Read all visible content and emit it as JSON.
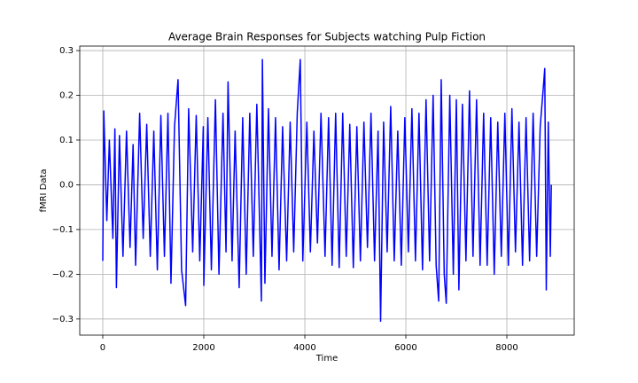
{
  "chart_data": {
    "type": "line",
    "title": "Average Brain Responses for Subjects watching Pulp Fiction",
    "x_label": "Time",
    "y_label": "fMRI Data",
    "grid": true,
    "xlim": [
      -456,
      9333
    ],
    "ylim": [
      -0.336,
      0.31
    ],
    "xticks": [
      0,
      2000,
      4000,
      6000,
      8000
    ],
    "yticks": [
      {
        "value": -0.3,
        "label": "−0.3"
      },
      {
        "value": -0.2,
        "label": "−0.2"
      },
      {
        "value": -0.1,
        "label": "−0.1"
      },
      {
        "value": 0,
        "label": "0.0"
      },
      0.1,
      0.2,
      0.3
    ],
    "x": [
      0,
      20,
      80,
      130,
      200,
      240,
      270,
      330,
      400,
      470,
      540,
      600,
      650,
      730,
      800,
      870,
      940,
      1010,
      1080,
      1150,
      1220,
      1290,
      1350,
      1420,
      1490,
      1560,
      1640,
      1700,
      1780,
      1850,
      1920,
      1990,
      2000,
      2080,
      2150,
      2230,
      2300,
      2380,
      2440,
      2480,
      2560,
      2620,
      2700,
      2770,
      2840,
      2910,
      2980,
      3050,
      3140,
      3160,
      3210,
      3280,
      3350,
      3420,
      3490,
      3560,
      3640,
      3710,
      3780,
      3850,
      3910,
      3960,
      4040,
      4110,
      4180,
      4250,
      4320,
      4400,
      4470,
      4540,
      4610,
      4680,
      4750,
      4820,
      4890,
      4960,
      5030,
      5100,
      5170,
      5240,
      5310,
      5380,
      5450,
      5500,
      5560,
      5630,
      5700,
      5770,
      5840,
      5910,
      5980,
      6050,
      6120,
      6190,
      6260,
      6330,
      6400,
      6470,
      6540,
      6600,
      6650,
      6700,
      6760,
      6800,
      6870,
      6940,
      7000,
      7050,
      7120,
      7190,
      7260,
      7330,
      7400,
      7470,
      7540,
      7610,
      7680,
      7750,
      7820,
      7890,
      7960,
      8030,
      8100,
      8170,
      8240,
      8310,
      8380,
      8450,
      8520,
      8590,
      8660,
      8720,
      8750,
      8780,
      8820,
      8860,
      8880
    ],
    "series": [
      {
        "color": "#0000ff",
        "values": [
          -0.17,
          0.165,
          -0.08,
          0.1,
          -0.12,
          0.125,
          -0.23,
          0.11,
          -0.16,
          0.12,
          -0.14,
          0.09,
          -0.18,
          0.16,
          -0.12,
          0.135,
          -0.16,
          0.12,
          -0.19,
          0.155,
          -0.16,
          0.16,
          -0.22,
          0.13,
          0.235,
          -0.19,
          -0.27,
          0.17,
          -0.15,
          0.155,
          -0.17,
          0.13,
          -0.225,
          0.15,
          -0.19,
          0.19,
          -0.2,
          0.16,
          -0.15,
          0.23,
          -0.17,
          0.12,
          -0.23,
          0.15,
          -0.2,
          0.16,
          -0.16,
          0.18,
          -0.26,
          0.28,
          -0.22,
          0.17,
          -0.16,
          0.15,
          -0.19,
          0.13,
          -0.17,
          0.14,
          -0.15,
          0.16,
          0.28,
          -0.17,
          0.14,
          -0.15,
          0.12,
          -0.13,
          0.16,
          -0.16,
          0.15,
          -0.18,
          0.16,
          -0.185,
          0.16,
          -0.16,
          0.135,
          -0.185,
          0.13,
          -0.17,
          0.14,
          -0.14,
          0.16,
          -0.17,
          0.12,
          -0.305,
          0.14,
          -0.15,
          0.175,
          -0.17,
          0.12,
          -0.18,
          0.15,
          -0.15,
          0.17,
          -0.17,
          0.16,
          -0.19,
          0.19,
          -0.17,
          0.2,
          -0.18,
          -0.26,
          0.235,
          -0.2,
          -0.265,
          0.2,
          -0.2,
          0.19,
          -0.235,
          0.18,
          -0.17,
          0.21,
          -0.16,
          0.19,
          -0.18,
          0.16,
          -0.18,
          0.15,
          -0.2,
          0.14,
          -0.16,
          0.16,
          -0.18,
          0.17,
          -0.15,
          0.14,
          -0.18,
          0.15,
          -0.17,
          0.16,
          -0.16,
          0.13,
          0.215,
          0.26,
          -0.235,
          0.14,
          -0.16,
          0.0
        ]
      }
    ]
  }
}
